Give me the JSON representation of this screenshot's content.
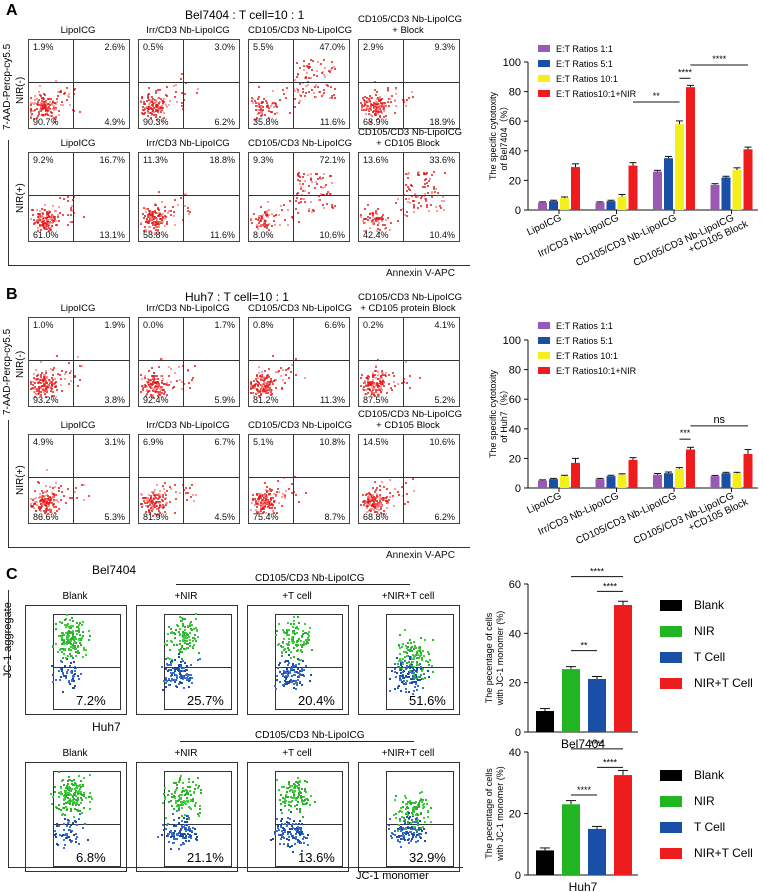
{
  "panel_A": {
    "letter": "A",
    "title": "Bel7404 : T cell=10 : 1",
    "y_axis": "7-AAD-Percp-cy5.5",
    "x_axis": "Annexin V-APC",
    "row_labels": [
      "NIR(-)",
      "NIR(+)"
    ],
    "flow_plots": [
      {
        "caption": "LipoICG",
        "ul": "1.9%",
        "ur": "2.6%",
        "ll": "90.7%",
        "lr": "4.9%"
      },
      {
        "caption": "Irr/CD3 Nb-LipoICG",
        "ul": "0.5%",
        "ur": "3.0%",
        "ll": "90.3%",
        "lr": "6.2%"
      },
      {
        "caption": "CD105/CD3 Nb-LipoICG",
        "ul": "5.5%",
        "ur": "47.0%",
        "ll": "35.8%",
        "lr": "11.6%"
      },
      {
        "caption": "CD105/CD3 Nb-LipoICG\n+ Block",
        "ul": "2.9%",
        "ur": "9.3%",
        "ll": "68.9%",
        "lr": "18.9%"
      },
      {
        "caption": "LipoICG",
        "ul": "9.2%",
        "ur": "16.7%",
        "ll": "61.0%",
        "lr": "13.1%"
      },
      {
        "caption": "Irr/CD3 Nb-LipoICG",
        "ul": "11.3%",
        "ur": "18.8%",
        "ll": "58.8%",
        "lr": "11.6%"
      },
      {
        "caption": "CD105/CD3 Nb-LipoICG",
        "ul": "9.3%",
        "ur": "72.1%",
        "ll": "8.0%",
        "lr": "10.6%"
      },
      {
        "caption": "CD105/CD3 Nb-LipoICG\n+ CD105 Block",
        "ul": "13.6%",
        "ur": "33.6%",
        "ll": "42.4%",
        "lr": "10.4%"
      }
    ]
  },
  "panel_B": {
    "letter": "B",
    "title": "Huh7 : T cell=10 : 1",
    "y_axis": "7-AAD-Percp-cy5.5",
    "x_axis": "Annexin V-APC",
    "row_labels": [
      "NIR(-)",
      "NIR(+)"
    ],
    "flow_plots": [
      {
        "caption": "LipoICG",
        "ul": "1.0%",
        "ur": "1.9%",
        "ll": "93.2%",
        "lr": "3.8%"
      },
      {
        "caption": "Irr/CD3 Nb-LipoICG",
        "ul": "0.0%",
        "ur": "1.7%",
        "ll": "92.4%",
        "lr": "5.9%"
      },
      {
        "caption": "CD105/CD3 Nb-LipoICG",
        "ul": "0.8%",
        "ur": "6.6%",
        "ll": "81.2%",
        "lr": "11.3%"
      },
      {
        "caption": "CD105/CD3 Nb-LipoICG\n+ CD105 protein Block",
        "ul": "0.2%",
        "ur": "4.1%",
        "ll": "87.5%",
        "lr": "5.2%"
      },
      {
        "caption": "LipoICG",
        "ul": "4.9%",
        "ur": "3.1%",
        "ll": "86.6%",
        "lr": "5.3%"
      },
      {
        "caption": "Irr/CD3 Nb-LipoICG",
        "ul": "6.9%",
        "ur": "6.7%",
        "ll": "81.9%",
        "lr": "4.5%"
      },
      {
        "caption": "CD105/CD3 Nb-LipoICG",
        "ul": "5.1%",
        "ur": "10.8%",
        "ll": "75.4%",
        "lr": "8.7%"
      },
      {
        "caption": "CD105/CD3 Nb-LipoICG\n+ CD105 Block",
        "ul": "14.5%",
        "ur": "10.6%",
        "ll": "68.8%",
        "lr": "6.2%"
      }
    ]
  },
  "panel_C": {
    "letter": "C",
    "y_axis": "JC-1 aggregate",
    "x_axis": "JC-1 monomer",
    "rows": [
      {
        "cell_line": "Bel7404",
        "group_header": "CD105/CD3 Nb-LipoICG",
        "captions": [
          "Blank",
          "+NIR",
          "+T cell",
          "+NIR+T cell"
        ],
        "percents": [
          "7.2%",
          "25.7%",
          "20.4%",
          "51.6%"
        ]
      },
      {
        "cell_line": "Huh7",
        "group_header": "CD105/CD3 Nb-LipoICG",
        "captions": [
          "Blank",
          "+NIR",
          "+T cell",
          "+NIR+T cell"
        ],
        "percents": [
          "6.8%",
          "21.1%",
          "13.6%",
          "32.9%"
        ]
      }
    ],
    "legend": [
      {
        "label": "Blank",
        "color": "#000000"
      },
      {
        "label": "NIR",
        "color": "#22b522"
      },
      {
        "label": "T Cell",
        "color": "#1a4fa8"
      },
      {
        "label": "NIR+T Cell",
        "color": "#ee1c1c"
      }
    ]
  },
  "chart_data": [
    {
      "type": "bar",
      "id": "cytotox-bel7404",
      "title": "",
      "ylabel": "The specific cytotoxity of Bel7404（%）",
      "xlabel": "",
      "ylim": [
        0,
        100
      ],
      "yticks": [
        0,
        20,
        40,
        60,
        80,
        100
      ],
      "categories": [
        "LipoICG",
        "Irr/CD3 Nb-LipoICG",
        "CD105/CD3 Nb-LipoICG",
        "CD105/CD3 Nb-LipoICG\n+CD105 Block"
      ],
      "series": [
        {
          "name": "E:T Ratios 1:1",
          "color": "#9b59b6",
          "values": [
            5,
            5,
            26,
            17
          ]
        },
        {
          "name": "E:T Ratios 5:1",
          "color": "#1a4fa8",
          "values": [
            6,
            6,
            35,
            22
          ]
        },
        {
          "name": "E:T Ratios 10:1",
          "color": "#f4ee1a",
          "values": [
            8,
            9,
            58,
            27
          ]
        },
        {
          "name": "E:T Ratios10:1+NIR",
          "color": "#ee1c1c",
          "values": [
            29,
            30,
            83,
            41
          ]
        }
      ],
      "errors": [
        [
          0.5,
          0.5,
          0.8,
          0.8
        ],
        [
          0.6,
          0.6,
          1.2,
          0.8
        ],
        [
          0.8,
          1.5,
          2.2,
          1.5
        ],
        [
          2.2,
          2,
          1.2,
          1.5
        ]
      ],
      "significance": [
        {
          "label": "**",
          "from": [
            1,
            3
          ],
          "to": [
            2,
            2
          ],
          "y": 73
        },
        {
          "label": "****",
          "from": [
            2,
            2
          ],
          "to": [
            2,
            3
          ],
          "y": 89
        },
        {
          "label": "****",
          "from": [
            2,
            3
          ],
          "to": [
            3,
            3
          ],
          "y": 98
        }
      ],
      "legend_position": "top-left"
    },
    {
      "type": "bar",
      "id": "cytotox-huh7",
      "title": "",
      "ylabel": "The specific cytotoxity of Huh7（%）",
      "xlabel": "",
      "ylim": [
        0,
        100
      ],
      "yticks": [
        0,
        20,
        40,
        60,
        80,
        100
      ],
      "categories": [
        "LipoICG",
        "Irr/CD3 Nb-LipoICG",
        "CD105/CD3 Nb-LipoICG",
        "CD105/CD3 Nb-LipoICG\n+CD105 Block"
      ],
      "series": [
        {
          "name": "E:T Ratios 1:1",
          "color": "#9b59b6",
          "values": [
            5,
            6,
            9,
            8
          ]
        },
        {
          "name": "E:T Ratios 5:1",
          "color": "#1a4fa8",
          "values": [
            6,
            8,
            10,
            10
          ]
        },
        {
          "name": "E:T Ratios 10:1",
          "color": "#f4ee1a",
          "values": [
            8,
            9,
            13,
            10
          ]
        },
        {
          "name": "E:T Ratios10:1+NIR",
          "color": "#ee1c1c",
          "values": [
            17,
            19,
            26,
            23
          ]
        }
      ],
      "errors": [
        [
          0.5,
          0.5,
          0.8,
          0.5
        ],
        [
          0.5,
          0.6,
          0.8,
          0.6
        ],
        [
          0.6,
          0.6,
          0.8,
          0.6
        ],
        [
          3,
          1.5,
          1.5,
          3
        ]
      ],
      "significance": [
        {
          "label": "***",
          "from": [
            2,
            2
          ],
          "to": [
            2,
            3
          ],
          "y": 33
        },
        {
          "label": "ns",
          "from": [
            2,
            3
          ],
          "to": [
            3,
            3
          ],
          "y": 42
        }
      ],
      "legend_position": "top-left"
    },
    {
      "type": "bar",
      "id": "jc1-bel7404",
      "title": "",
      "ylabel": "The pecentage of cells with JC-1 monomer (%)",
      "xlabel": "Bel7404",
      "ylim": [
        0,
        60
      ],
      "yticks": [
        0,
        20,
        40,
        60
      ],
      "categories": [
        "Blank",
        "NIR",
        "T Cell",
        "NIR+T Cell"
      ],
      "colors": [
        "#000000",
        "#22b522",
        "#1a4fa8",
        "#ee1c1c"
      ],
      "values": [
        8.5,
        25.5,
        21.5,
        51.5
      ],
      "errors": [
        1,
        1,
        1,
        1.5
      ],
      "significance": [
        {
          "label": "**",
          "from": 1,
          "to": 2,
          "y": 33
        },
        {
          "label": "****",
          "from": 2,
          "to": 3,
          "y": 57
        },
        {
          "label": "****",
          "from": 1,
          "to": 3,
          "y": 63
        }
      ]
    },
    {
      "type": "bar",
      "id": "jc1-huh7",
      "title": "",
      "ylabel": "The pecentage of  cells with JC-1 monomer (%)",
      "xlabel": "Huh7",
      "ylim": [
        0,
        40
      ],
      "yticks": [
        0,
        20,
        40
      ],
      "categories": [
        "Blank",
        "NIR",
        "T Cell",
        "NIR+T Cell"
      ],
      "colors": [
        "#000000",
        "#22b522",
        "#1a4fa8",
        "#ee1c1c"
      ],
      "values": [
        8,
        23,
        15,
        32.5
      ],
      "errors": [
        0.8,
        1.2,
        0.8,
        1.5
      ],
      "significance": [
        {
          "label": "****",
          "from": 1,
          "to": 2,
          "y": 26
        },
        {
          "label": "****",
          "from": 2,
          "to": 3,
          "y": 35
        },
        {
          "label": "****",
          "from": 1,
          "to": 3,
          "y": 41
        }
      ]
    }
  ]
}
